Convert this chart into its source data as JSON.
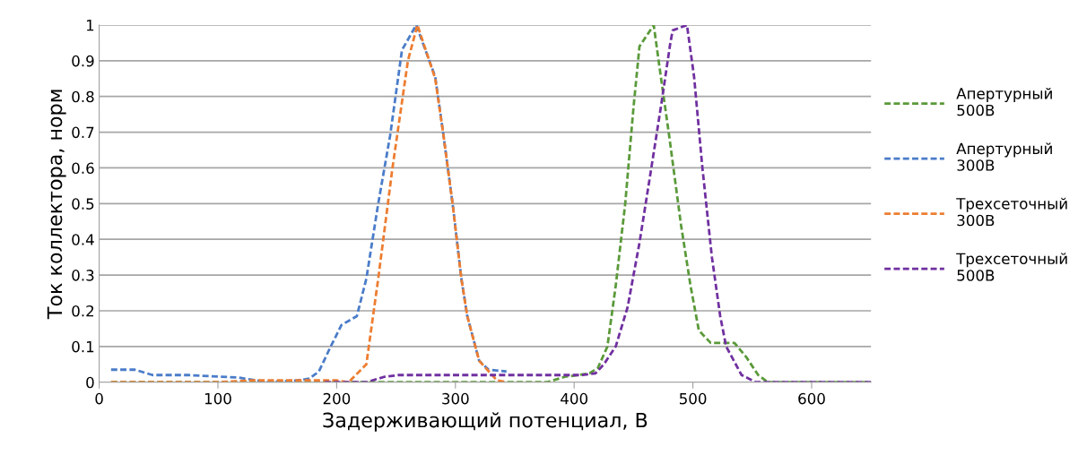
{
  "chart_data": {
    "type": "line",
    "xlabel": "Задерживающий потенциал, В",
    "ylabel": "Ток коллектора, норм",
    "xlim": [
      0,
      650
    ],
    "xticks": [
      0,
      100,
      200,
      300,
      400,
      500,
      600
    ],
    "ylim": [
      0,
      1
    ],
    "yticks": [
      0,
      0.1,
      0.2,
      0.3,
      0.4,
      0.5,
      0.6,
      0.7,
      0.8,
      0.9,
      1
    ],
    "grid": "y",
    "legend": "right",
    "line_style": "dashed",
    "marker": "none",
    "series": [
      {
        "name": "Апертурный\n500В",
        "color": "#5b9a3a",
        "x": [
          10,
          100,
          200,
          300,
          377,
          392,
          403,
          413,
          420,
          428,
          435,
          443,
          450,
          455,
          467,
          473,
          480,
          490,
          498,
          505,
          515,
          535,
          545,
          555,
          563,
          600,
          650
        ],
        "values": [
          0,
          0,
          0,
          0,
          0,
          0.015,
          0.02,
          0.025,
          0.04,
          0.1,
          0.27,
          0.5,
          0.77,
          0.94,
          1.0,
          0.855,
          0.69,
          0.44,
          0.27,
          0.145,
          0.11,
          0.11,
          0.07,
          0.02,
          0,
          0,
          0
        ]
      },
      {
        "name": "Апертурный\n300В",
        "color": "#4a7cc9",
        "x": [
          10,
          30,
          45,
          75,
          117,
          142,
          167,
          177,
          185,
          195,
          204,
          217,
          225,
          235,
          245,
          255,
          267,
          283,
          290,
          298,
          305,
          310,
          320,
          328,
          343
        ],
        "values": [
          0.035,
          0.035,
          0.02,
          0.02,
          0.013,
          0,
          0.005,
          0.01,
          0.03,
          0.1,
          0.16,
          0.185,
          0.29,
          0.5,
          0.69,
          0.93,
          1.0,
          0.855,
          0.69,
          0.49,
          0.29,
          0.185,
          0.06,
          0.035,
          0.03
        ]
      },
      {
        "name": "Трехсеточный\n300В",
        "color": "#ed7d31",
        "x": [
          10,
          100,
          130,
          200,
          210,
          225,
          235,
          247,
          260,
          268,
          283,
          290,
          298,
          305,
          310,
          320,
          335,
          343
        ],
        "values": [
          0,
          0,
          0.005,
          0.005,
          0,
          0.05,
          0.29,
          0.6,
          0.9,
          1.0,
          0.85,
          0.69,
          0.49,
          0.29,
          0.185,
          0.06,
          0.005,
          0
        ]
      },
      {
        "name": "Трехсеточный\n500В",
        "color": "#7030a0",
        "x": [
          190,
          225,
          240,
          252,
          300,
          350,
          407,
          418,
          425,
          435,
          445,
          455,
          465,
          473,
          481,
          483,
          495,
          501,
          508,
          516,
          523,
          528,
          541,
          553,
          600,
          650
        ],
        "values": [
          0,
          0,
          0.015,
          0.02,
          0.02,
          0.02,
          0.02,
          0.025,
          0.05,
          0.1,
          0.21,
          0.39,
          0.6,
          0.77,
          0.95,
          0.985,
          1.0,
          0.855,
          0.6,
          0.35,
          0.185,
          0.1,
          0.02,
          0,
          0,
          0
        ]
      }
    ]
  }
}
